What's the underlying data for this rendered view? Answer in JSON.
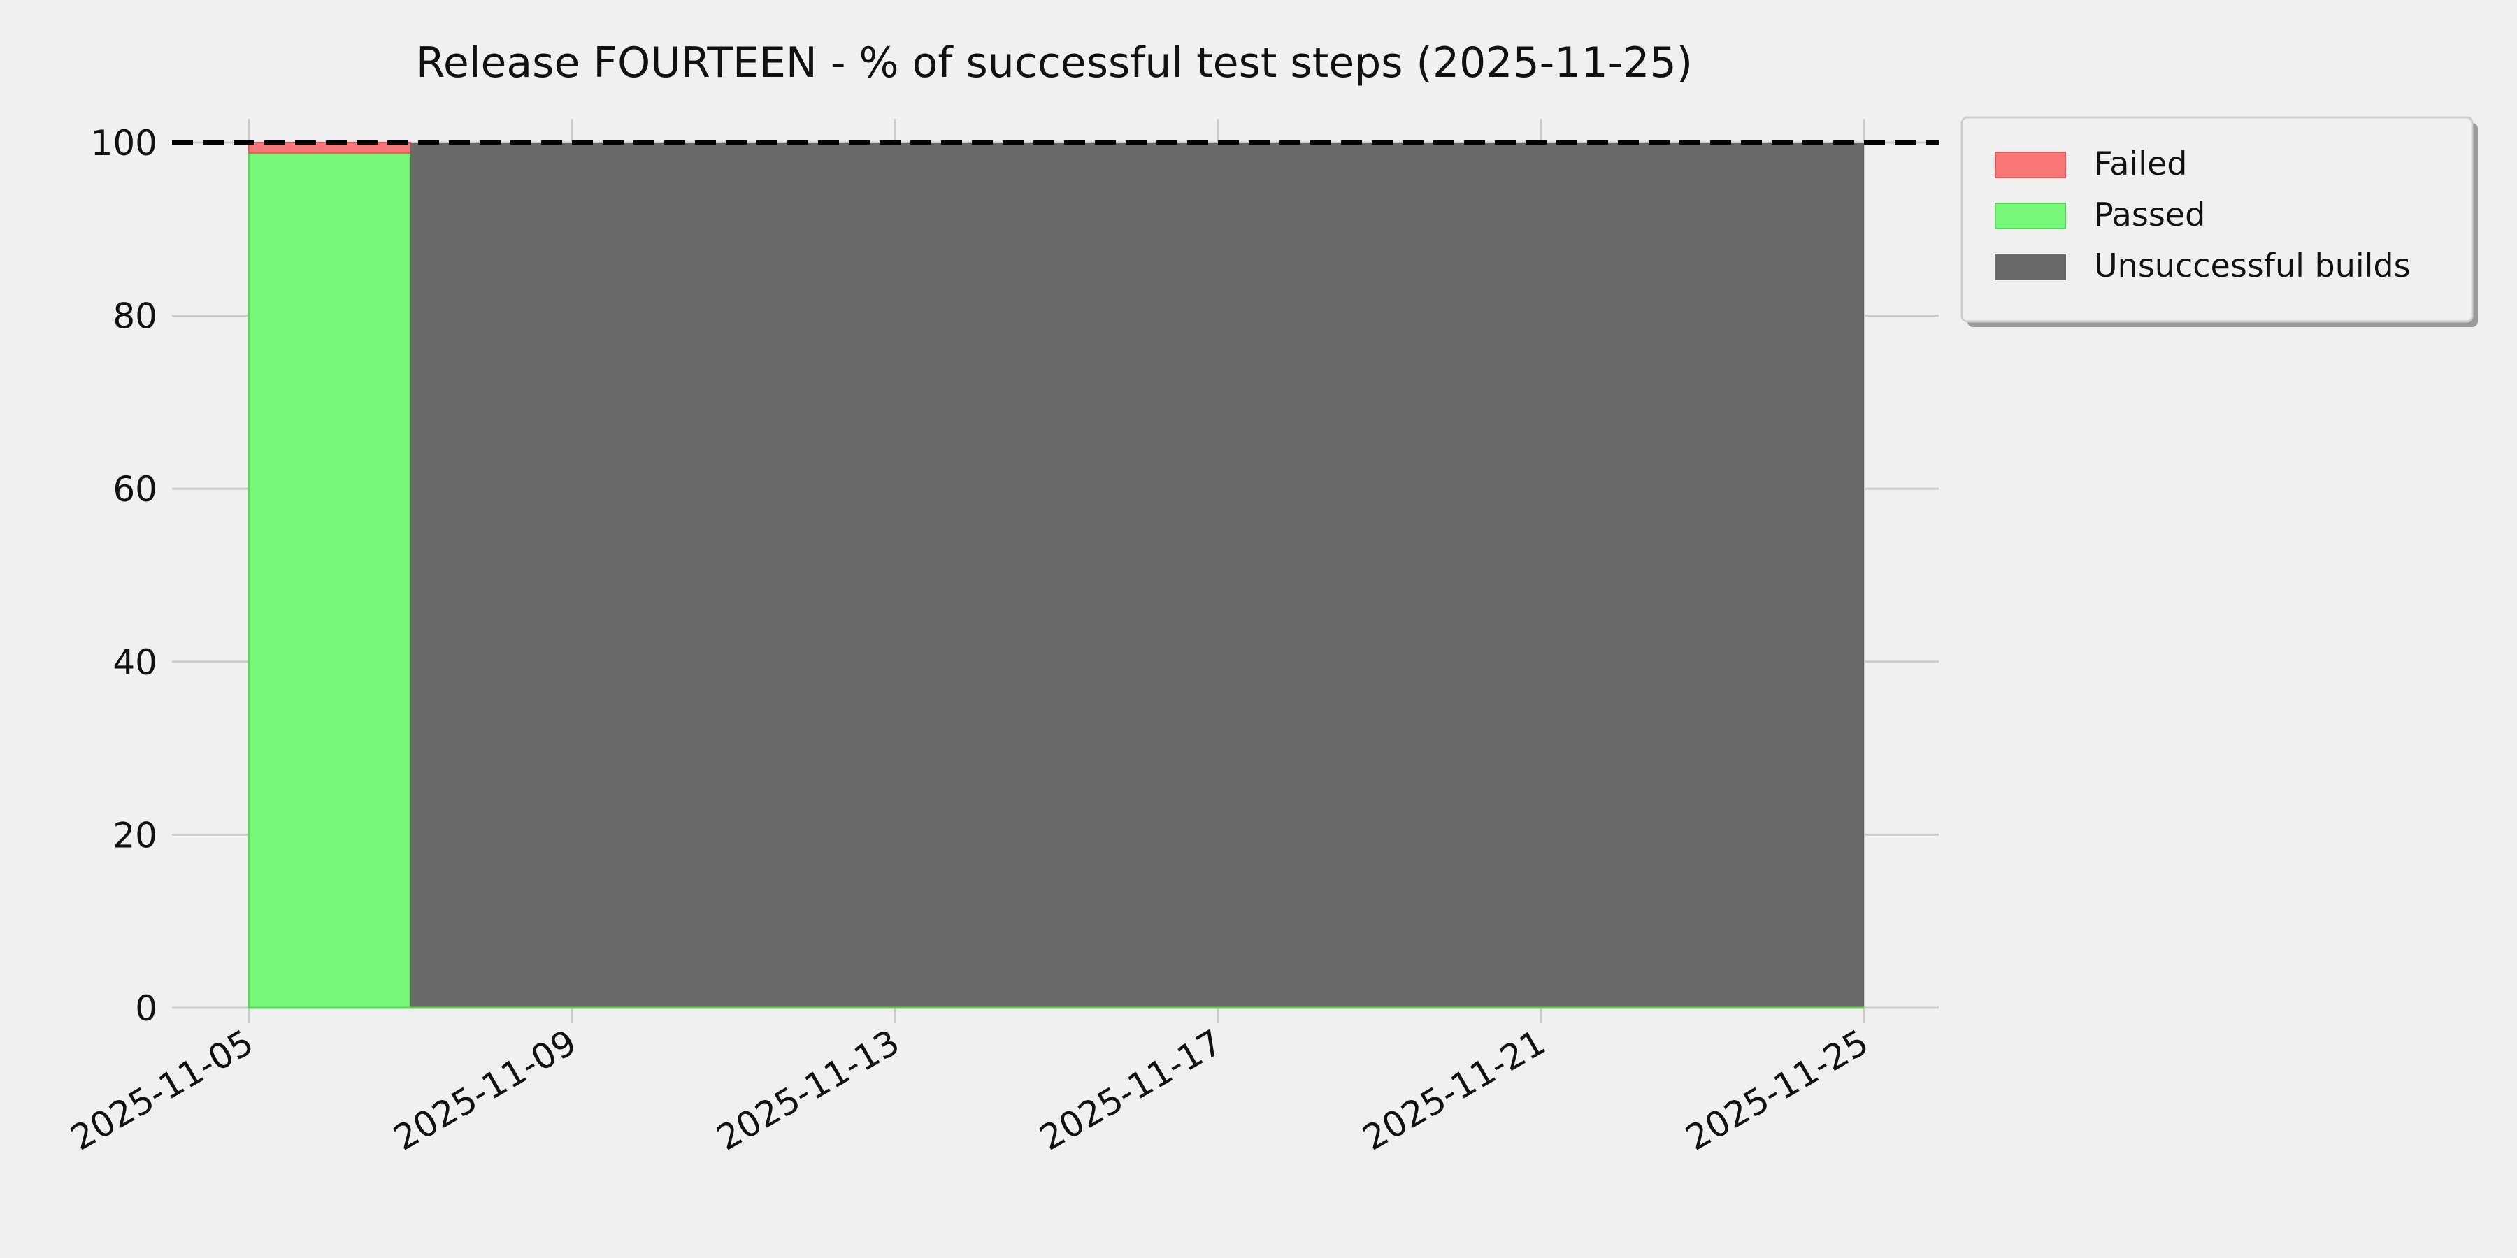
{
  "chart_data": {
    "type": "area",
    "title": "Release FOURTEEN - % of successful test steps (2025-11-25)",
    "xlabel": "",
    "ylabel": "",
    "x_type": "date",
    "xlim": [
      "2025-11-05",
      "2025-11-25"
    ],
    "ylim": [
      0,
      100
    ],
    "x_ticks": [
      "2025-11-05",
      "2025-11-09",
      "2025-11-13",
      "2025-11-17",
      "2025-11-21",
      "2025-11-25"
    ],
    "y_ticks": [
      0,
      20,
      40,
      60,
      80,
      100
    ],
    "grid": true,
    "stacked": true,
    "reference_line": {
      "y": 100,
      "style": "dashed",
      "color": "#000000"
    },
    "legend_position": "outside-top-right",
    "series": [
      {
        "name": "Failed",
        "color": "#f87878",
        "segments": [
          {
            "x_start": "2025-11-05",
            "x_end": "2025-11-07",
            "value": 1.2
          }
        ]
      },
      {
        "name": "Passed",
        "color": "#78f878",
        "segments": [
          {
            "x_start": "2025-11-05",
            "x_end": "2025-11-07",
            "value": 98.8
          }
        ]
      },
      {
        "name": "Unsuccessful builds",
        "color": "#696969",
        "segments": [
          {
            "x_start": "2025-11-07",
            "x_end": "2025-11-25",
            "value": 100
          }
        ]
      }
    ]
  }
}
